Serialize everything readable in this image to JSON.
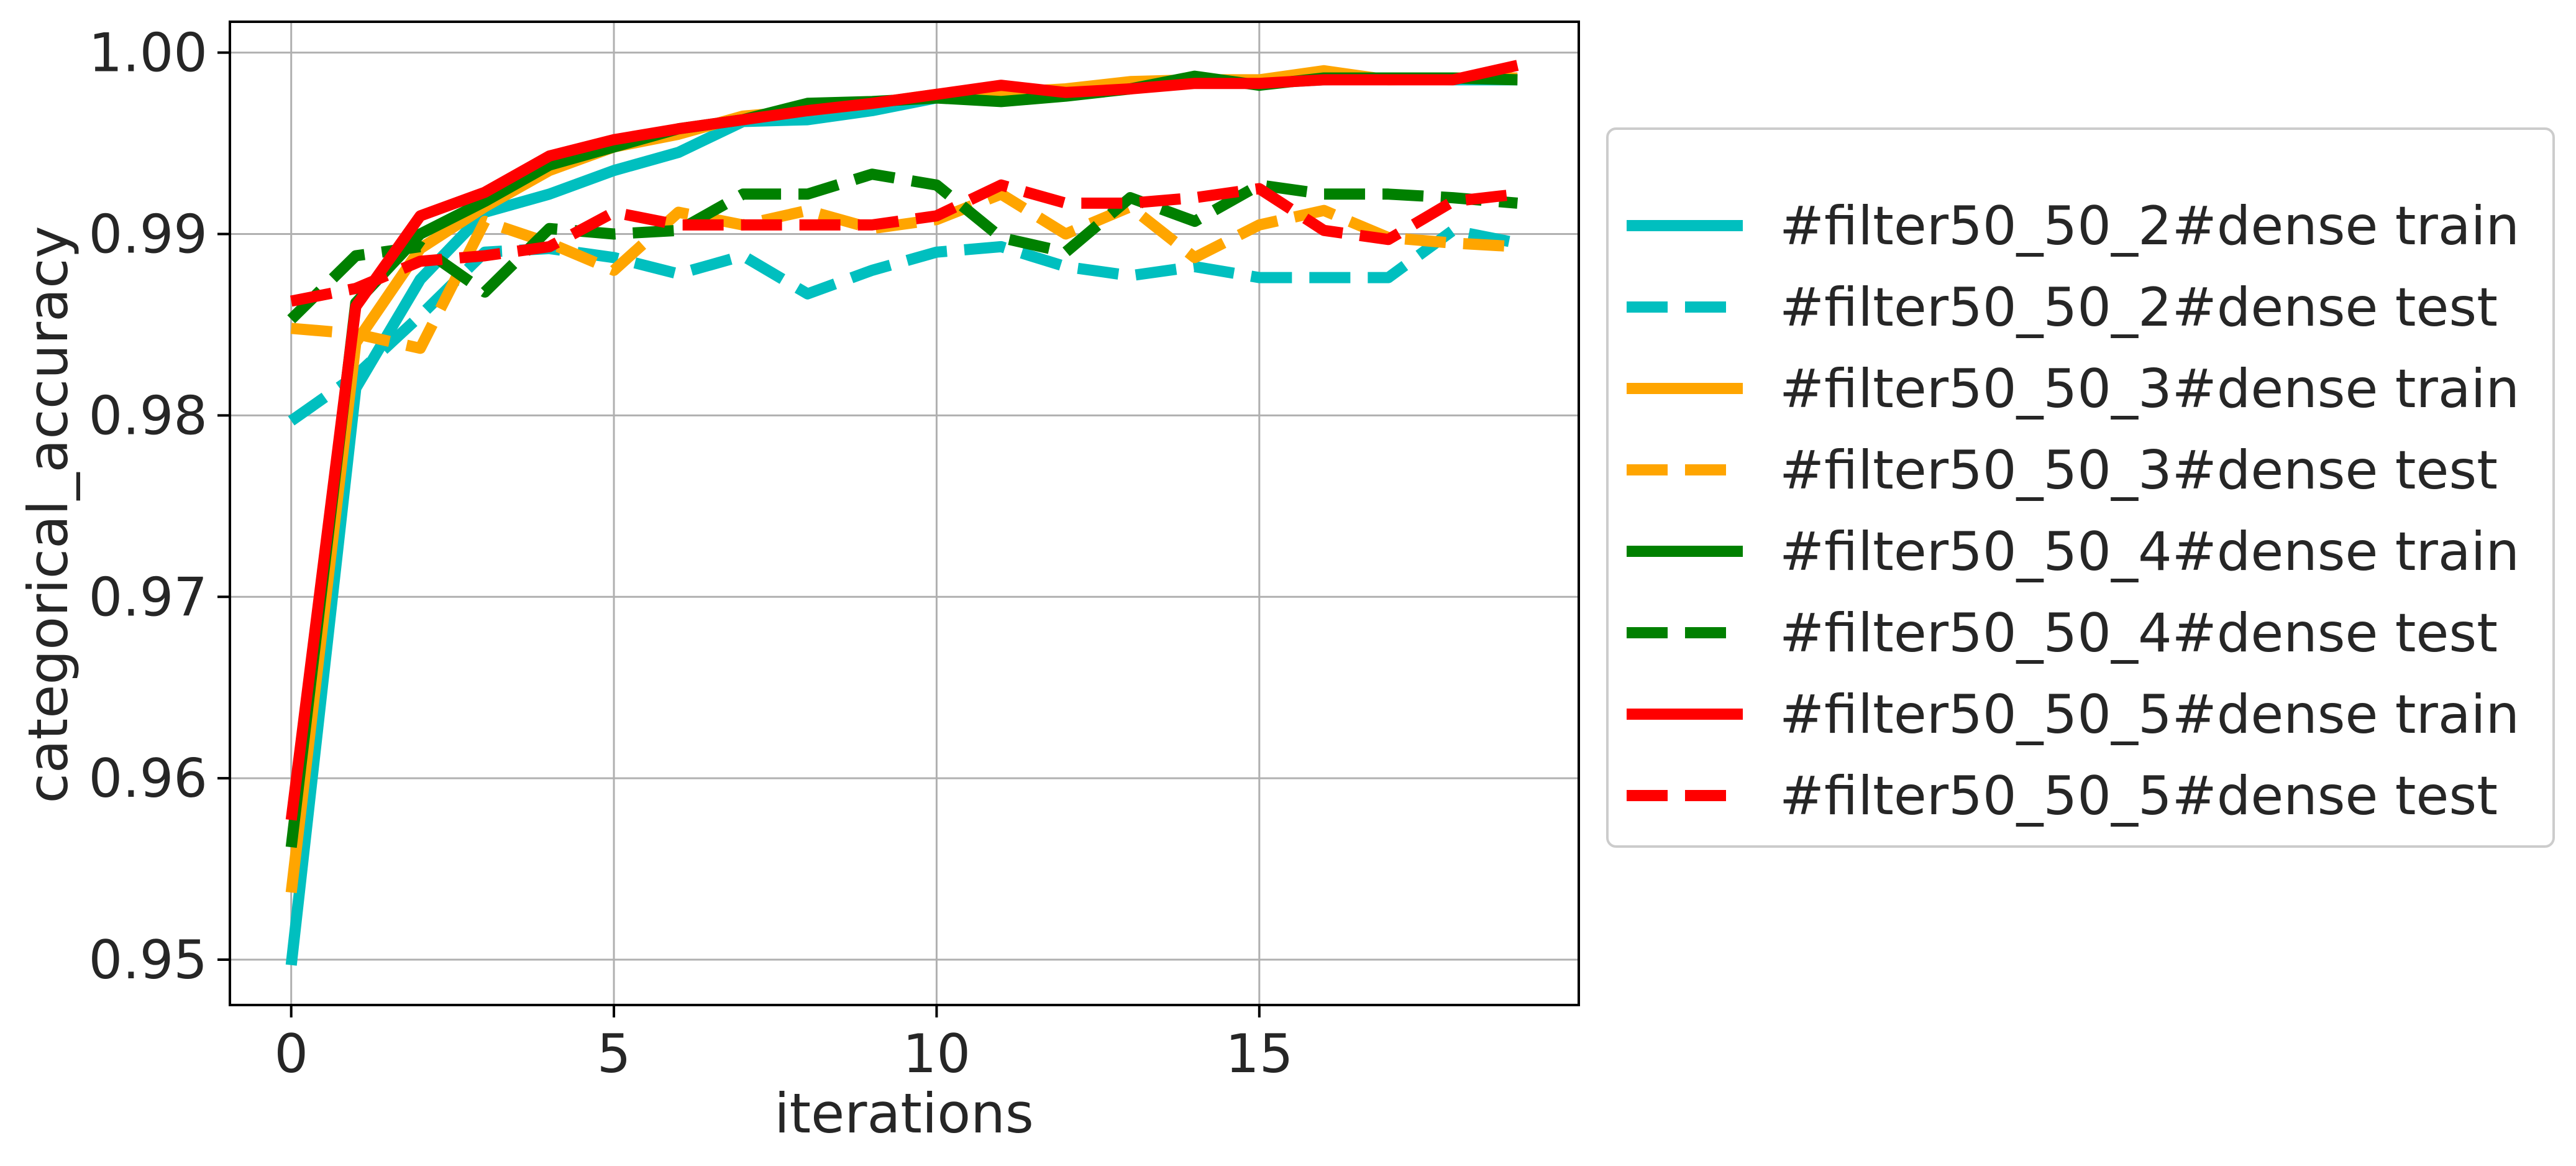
{
  "chart_data": {
    "type": "line",
    "xlabel": "iterations",
    "ylabel": "categorical_accuracy",
    "xlim": [
      -0.95,
      19.95
    ],
    "ylim": [
      0.9475,
      1.0017
    ],
    "grid": true,
    "legend_position": "right-outside",
    "x_ticks": [
      0,
      5,
      10,
      15
    ],
    "x_tick_labels": [
      "0",
      "5",
      "10",
      "15"
    ],
    "y_ticks": [
      0.95,
      0.96,
      0.97,
      0.98,
      0.99,
      1.0
    ],
    "y_tick_labels": [
      "0.95",
      "0.96",
      "0.97",
      "0.98",
      "0.99",
      "1.00"
    ],
    "x": [
      0,
      1,
      2,
      3,
      4,
      5,
      6,
      7,
      8,
      9,
      10,
      11,
      12,
      13,
      14,
      15,
      16,
      17,
      18,
      19
    ],
    "series": [
      {
        "name": "#filter50_50_2#dense train",
        "color": "#00bfbf",
        "dash": "solid",
        "values": [
          0.9497,
          0.9815,
          0.9875,
          0.9912,
          0.9922,
          0.9935,
          0.9945,
          0.9962,
          0.9963,
          0.9968,
          0.9975,
          0.9978,
          0.9978,
          0.998,
          0.9985,
          0.9983,
          0.9985,
          0.9986,
          0.9985,
          0.9985
        ]
      },
      {
        "name": "#filter50_50_2#dense test",
        "color": "#00bfbf",
        "dash": "dashed",
        "values": [
          0.9797,
          0.9822,
          0.9855,
          0.989,
          0.9892,
          0.9887,
          0.9878,
          0.9888,
          0.9867,
          0.988,
          0.989,
          0.9893,
          0.9882,
          0.9877,
          0.9882,
          0.9876,
          0.9876,
          0.9876,
          0.9902,
          0.9895
        ]
      },
      {
        "name": "#filter50_50_3#dense train",
        "color": "#ffa500",
        "dash": "solid",
        "values": [
          0.9537,
          0.984,
          0.9892,
          0.9915,
          0.9935,
          0.9948,
          0.9955,
          0.9965,
          0.9968,
          0.9972,
          0.9977,
          0.9978,
          0.998,
          0.9984,
          0.9985,
          0.9985,
          0.999,
          0.9985,
          0.9986,
          0.9986
        ]
      },
      {
        "name": "#filter50_50_3#dense test",
        "color": "#ffa500",
        "dash": "dashed",
        "values": [
          0.9848,
          0.9845,
          0.9837,
          0.9907,
          0.9895,
          0.988,
          0.9912,
          0.9905,
          0.9913,
          0.9903,
          0.9908,
          0.9922,
          0.99,
          0.9915,
          0.9887,
          0.9905,
          0.9913,
          0.9898,
          0.9895,
          0.9893
        ]
      },
      {
        "name": "#filter50_50_4#dense train",
        "color": "#008000",
        "dash": "solid",
        "values": [
          0.9562,
          0.9862,
          0.99,
          0.9918,
          0.9938,
          0.9948,
          0.9958,
          0.9963,
          0.9972,
          0.9973,
          0.9975,
          0.9973,
          0.9976,
          0.998,
          0.9987,
          0.9982,
          0.9986,
          0.9986,
          0.9986,
          0.9985
        ]
      },
      {
        "name": "#filter50_50_4#dense test",
        "color": "#008000",
        "dash": "dashed",
        "values": [
          0.9853,
          0.9888,
          0.9893,
          0.9868,
          0.9903,
          0.99,
          0.9902,
          0.9922,
          0.9922,
          0.9933,
          0.9927,
          0.9898,
          0.989,
          0.992,
          0.9907,
          0.9927,
          0.9922,
          0.9922,
          0.992,
          0.9917
        ]
      },
      {
        "name": "#filter50_50_5#dense train",
        "color": "#ff0000",
        "dash": "solid",
        "values": [
          0.9577,
          0.986,
          0.991,
          0.9923,
          0.9943,
          0.9952,
          0.9958,
          0.9963,
          0.9968,
          0.9972,
          0.9977,
          0.9982,
          0.9978,
          0.998,
          0.9983,
          0.9983,
          0.9985,
          0.9985,
          0.9985,
          0.9993
        ]
      },
      {
        "name": "#filter50_50_5#dense test",
        "color": "#ff0000",
        "dash": "dashed",
        "values": [
          0.9863,
          0.987,
          0.9885,
          0.9888,
          0.9893,
          0.9912,
          0.9905,
          0.9905,
          0.9905,
          0.9905,
          0.991,
          0.9927,
          0.9917,
          0.9917,
          0.992,
          0.9925,
          0.9902,
          0.9897,
          0.9918,
          0.9922
        ]
      }
    ]
  }
}
